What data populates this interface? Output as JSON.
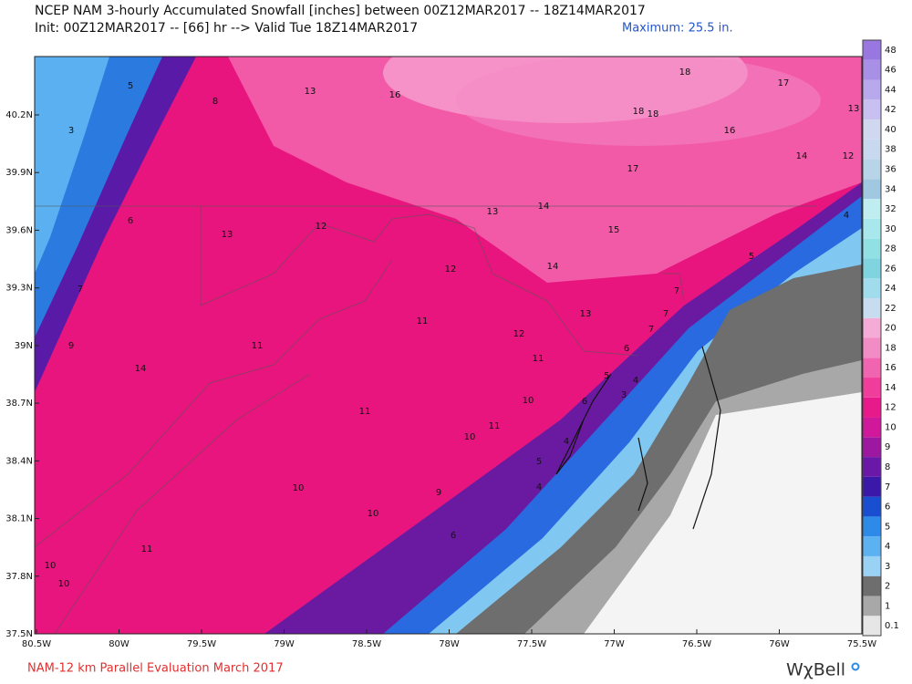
{
  "header": {
    "title": "NCEP NAM 3-hourly Accumulated Snowfall [inches] between 00Z12MAR2017 -- 18Z14MAR2017",
    "init": "Init: 00Z12MAR2017 -- [66] hr --> Valid Tue 18Z14MAR2017",
    "maximum": "Maximum: 25.5 in."
  },
  "map": {
    "lat_labels": [
      "40.2N",
      "39.9N",
      "39.6N",
      "39.3N",
      "39N",
      "38.7N",
      "38.4N",
      "38.1N",
      "37.8N",
      "37.5N"
    ],
    "lon_labels": [
      "80.5W",
      "80W",
      "79.5W",
      "79W",
      "78.5W",
      "78W",
      "77.5W",
      "77W",
      "76.5W",
      "76W",
      "75.5W"
    ],
    "labels": [
      "5",
      "3",
      "8",
      "13",
      "16",
      "18",
      "17",
      "18",
      "18",
      "13",
      "16",
      "17",
      "14",
      "12",
      "6",
      "13",
      "12",
      "13",
      "14",
      "15",
      "14",
      "12",
      "5",
      "4",
      "7",
      "11",
      "13",
      "7",
      "7",
      "7",
      "9",
      "11",
      "12",
      "6",
      "5",
      "4",
      "3",
      "14",
      "11",
      "10",
      "6",
      "11",
      "11",
      "10",
      "4",
      "5",
      "4",
      "10",
      "9",
      "10",
      "6",
      "11",
      "10",
      "10"
    ]
  },
  "legend": {
    "levels": [
      {
        "label": "0.1",
        "color": "#e6e6e6"
      },
      {
        "label": "1",
        "color": "#a8a8a8"
      },
      {
        "label": "2",
        "color": "#6e6e6e"
      },
      {
        "label": "3",
        "color": "#9ad2f5"
      },
      {
        "label": "4",
        "color": "#5cb2f0"
      },
      {
        "label": "5",
        "color": "#2e8ae8"
      },
      {
        "label": "6",
        "color": "#1a4ed0"
      },
      {
        "label": "7",
        "color": "#3a18a8"
      },
      {
        "label": "8",
        "color": "#6a18a8"
      },
      {
        "label": "9",
        "color": "#9c18a0"
      },
      {
        "label": "10",
        "color": "#d0189a"
      },
      {
        "label": "12",
        "color": "#e8198a"
      },
      {
        "label": "14",
        "color": "#f03c9a"
      },
      {
        "label": "16",
        "color": "#f064b0"
      },
      {
        "label": "18",
        "color": "#f28cc4"
      },
      {
        "label": "20",
        "color": "#f4acd6"
      },
      {
        "label": "22",
        "color": "#c8dcf0"
      },
      {
        "label": "24",
        "color": "#a0dcec"
      },
      {
        "label": "26",
        "color": "#80d4e0"
      },
      {
        "label": "28",
        "color": "#90e0e4"
      },
      {
        "label": "30",
        "color": "#a8e8ec"
      },
      {
        "label": "32",
        "color": "#c0eef0"
      },
      {
        "label": "34",
        "color": "#a0c8e0"
      },
      {
        "label": "36",
        "color": "#b8d4e8"
      },
      {
        "label": "38",
        "color": "#c8d8ee"
      },
      {
        "label": "40",
        "color": "#d0d8f0"
      },
      {
        "label": "42",
        "color": "#c8c0f0"
      },
      {
        "label": "44",
        "color": "#b8a8ec"
      },
      {
        "label": "46",
        "color": "#a890e6"
      },
      {
        "label": "48",
        "color": "#9878e0"
      }
    ]
  },
  "footer": {
    "credit": "NAM-12 km Parallel Evaluation March 2017",
    "brand": "WχBell"
  }
}
